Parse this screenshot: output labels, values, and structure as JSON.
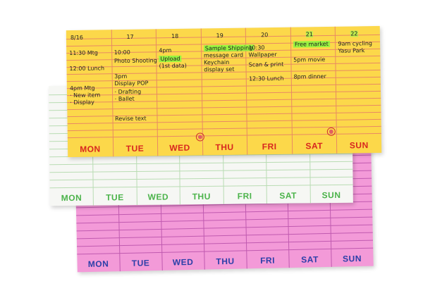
{
  "pads": {
    "pink": {
      "color": "#f39ad8",
      "line_color": "#c05ab0",
      "day_color": "#2b3fa8",
      "days": [
        "MON",
        "TUE",
        "WED",
        "THU",
        "FRI",
        "SAT",
        "SUN"
      ]
    },
    "white": {
      "color": "#f6f7f4",
      "line_color": "#b9dcb3",
      "day_color": "#4bb34a",
      "days": [
        "MON",
        "TUE",
        "WED",
        "THU",
        "FRI",
        "SAT",
        "SUN"
      ]
    },
    "yellow": {
      "color": "#fcd84a",
      "line_color": "#e98a63",
      "day_color": "#d8261f",
      "days": [
        "MON",
        "TUE",
        "WED",
        "THU",
        "FRI",
        "SAT",
        "SUN"
      ]
    }
  },
  "handwriting": {
    "dates": [
      "8/16",
      "17",
      "18",
      "19",
      "20",
      "21",
      "22"
    ],
    "mon": [
      "11:30 Mtg",
      "12:00 Lunch",
      "4pm Mtg",
      "· New item",
      "· Display"
    ],
    "tue": [
      "10:00",
      "Photo Shooting",
      "3pm",
      "Display POP",
      "· Drafting",
      "· Ballet",
      "Revise text"
    ],
    "wed": [
      "4pm",
      "Upload",
      "(1st data)"
    ],
    "thu": [
      "Sample Shipping",
      "message card",
      "Keychain",
      "display set"
    ],
    "fri": [
      "10:30",
      "Wallpaper",
      "Scan & print",
      "12:30 Lunch"
    ],
    "sat": [
      "Free market",
      "5pm movie",
      "8pm dinner"
    ],
    "sun": [
      "9am cycling",
      "Yasu Park"
    ]
  }
}
